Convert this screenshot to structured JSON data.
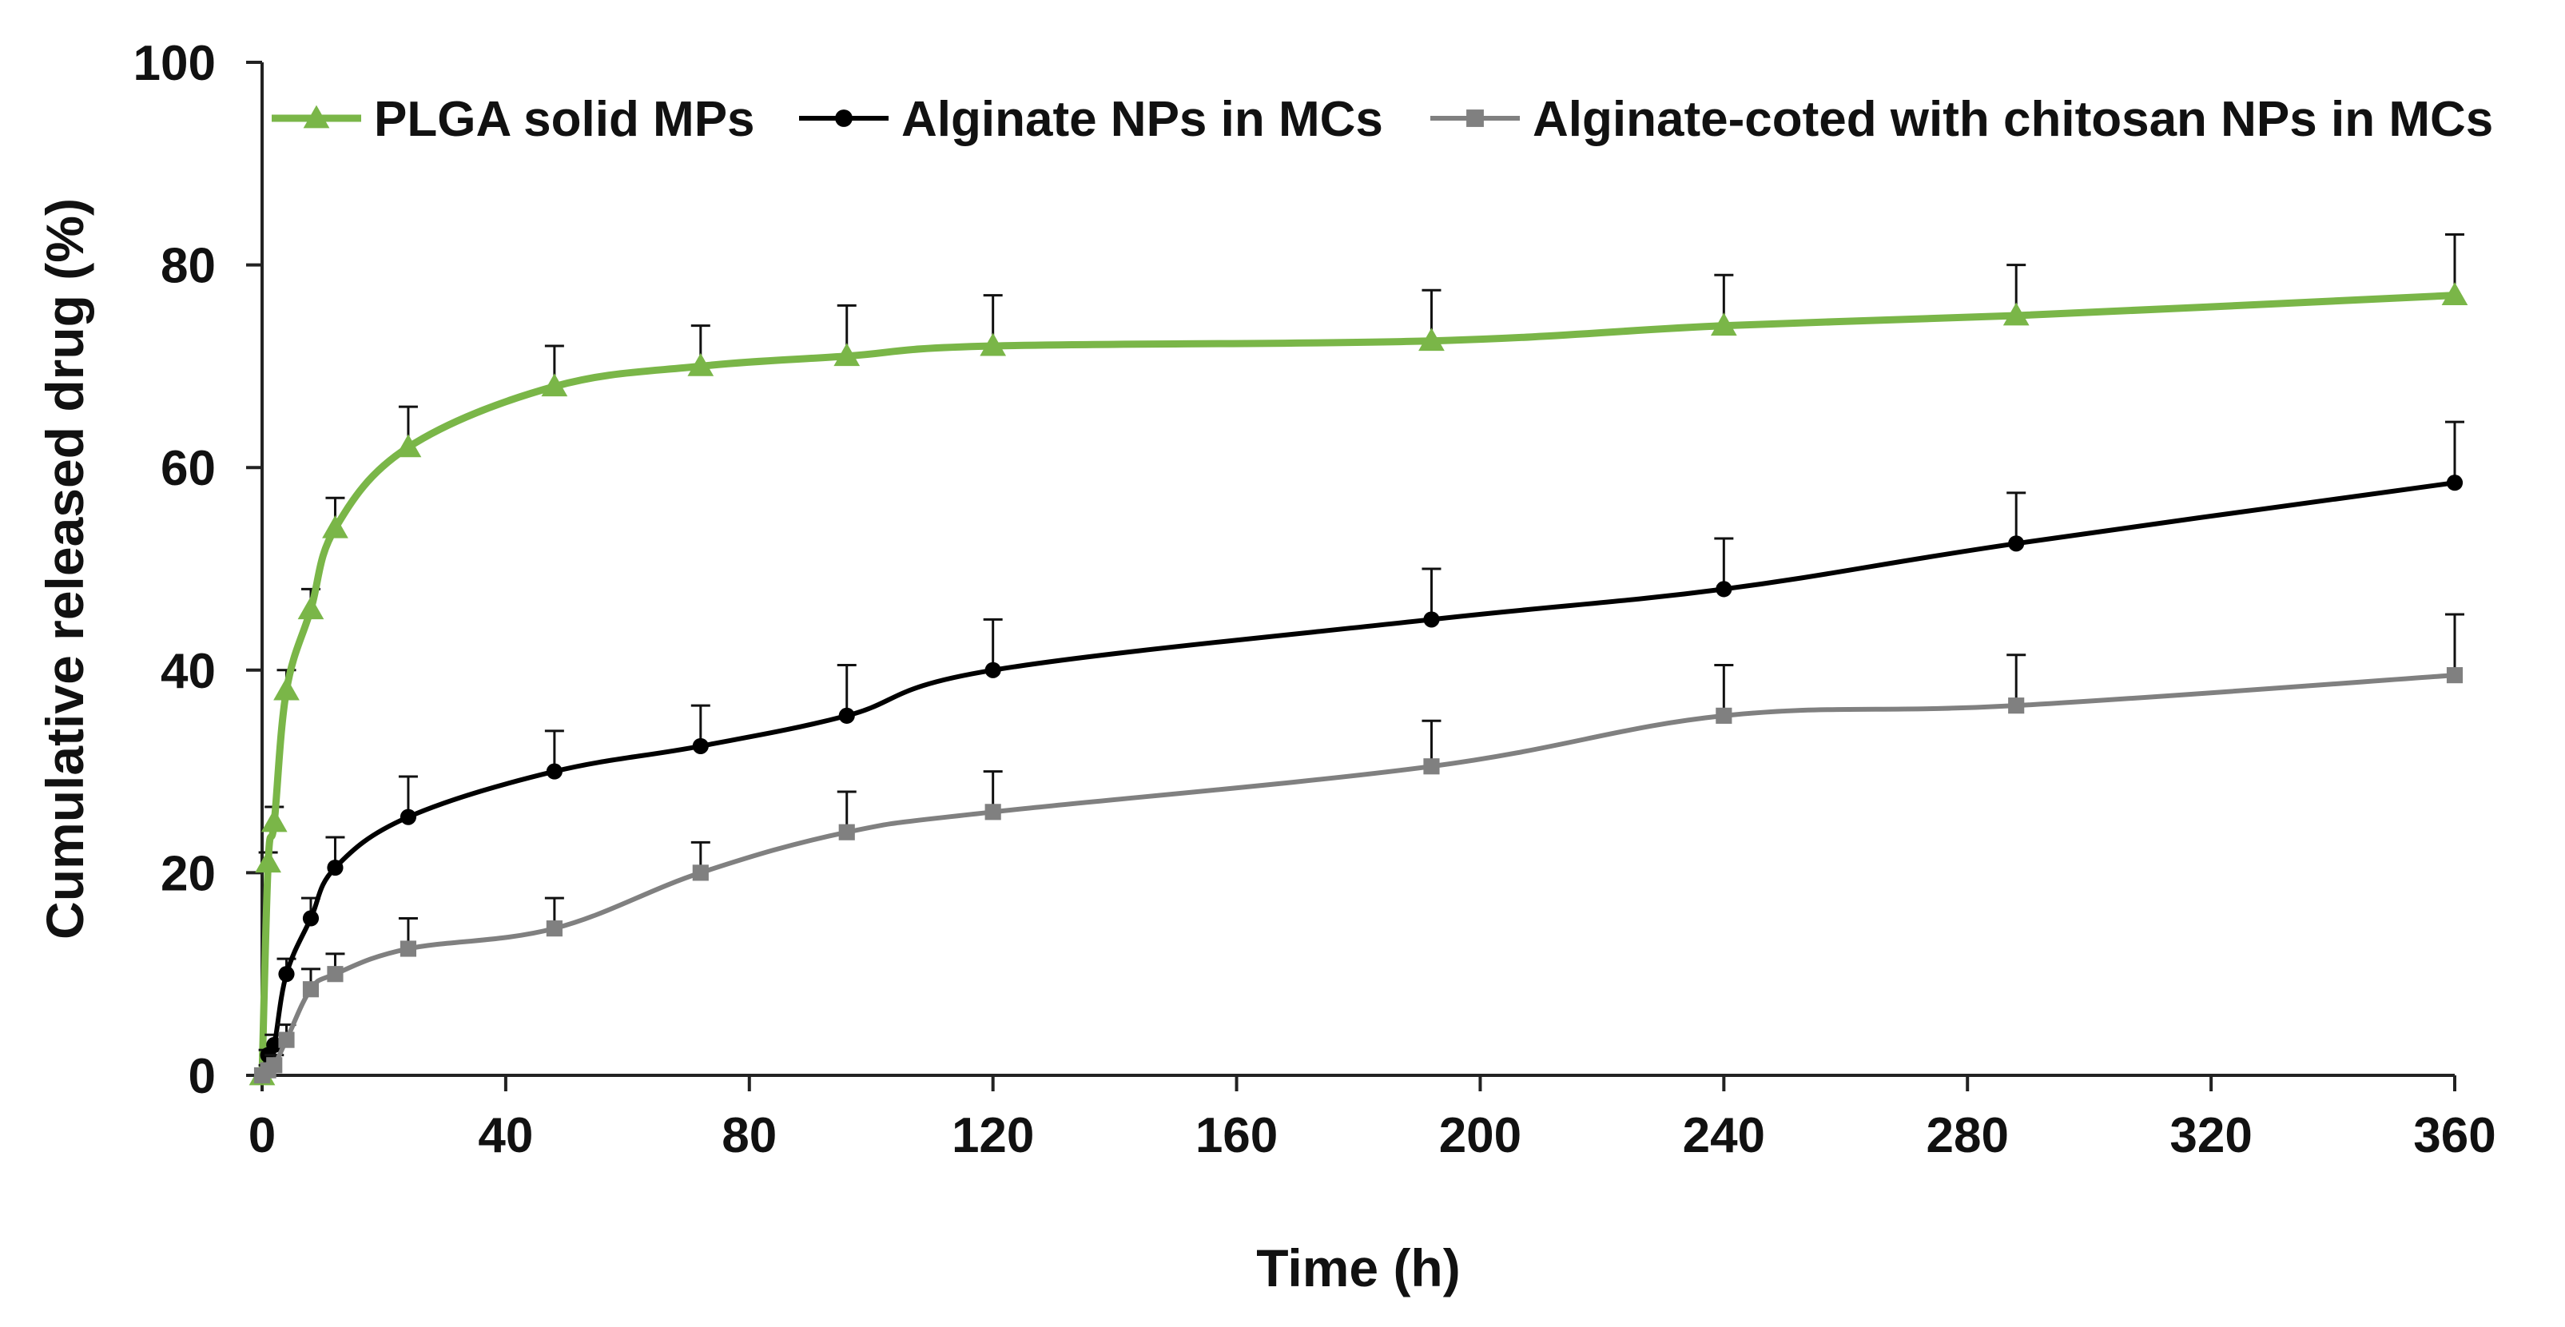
{
  "chart_data": {
    "type": "line",
    "title": "",
    "xlabel": "Time (h)",
    "ylabel": "Cumulative released drug (%)",
    "xlim": [
      0,
      360
    ],
    "ylim": [
      0,
      100
    ],
    "xticks": [
      "0",
      "40",
      "80",
      "120",
      "160",
      "200",
      "240",
      "280",
      "320",
      "360"
    ],
    "yticks": [
      "0",
      "20",
      "40",
      "60",
      "80",
      "100"
    ],
    "xtick_values": [
      0,
      40,
      80,
      120,
      160,
      200,
      240,
      280,
      320,
      360
    ],
    "ytick_values": [
      0,
      20,
      40,
      60,
      80,
      100
    ],
    "grid": false,
    "legend_position": "top",
    "series": [
      {
        "name": "PLGA solid MPs",
        "color": "#7ab648",
        "marker": "triangle",
        "x": [
          0,
          1,
          2,
          4,
          8,
          12,
          24,
          48,
          72,
          96,
          120,
          192,
          240,
          288,
          360
        ],
        "y": [
          0,
          21,
          25,
          38,
          46,
          54,
          62,
          68,
          70,
          71,
          72,
          72.5,
          74,
          75,
          77
        ],
        "error": [
          0,
          1,
          1.5,
          2,
          2,
          3,
          4,
          4,
          4,
          5,
          5,
          5,
          5,
          5,
          6
        ]
      },
      {
        "name": "Alginate NPs in MCs",
        "color": "#000000",
        "marker": "circle",
        "x": [
          0,
          1,
          2,
          4,
          8,
          12,
          24,
          48,
          72,
          96,
          120,
          192,
          240,
          288,
          360
        ],
        "y": [
          0,
          2,
          3,
          10,
          15.5,
          20.5,
          25.5,
          30,
          32.5,
          35.5,
          40,
          45,
          48,
          52.5,
          58.5
        ],
        "error": [
          0,
          0.5,
          1,
          1.5,
          2,
          3,
          4,
          4,
          4,
          5,
          5,
          5,
          5,
          5,
          6
        ]
      },
      {
        "name": "Alginate-coted with chitosan NPs in MCs",
        "color": "#808080",
        "marker": "square",
        "x": [
          0,
          1,
          2,
          4,
          8,
          12,
          24,
          48,
          72,
          96,
          120,
          192,
          240,
          288,
          360
        ],
        "y": [
          0,
          0.5,
          1,
          3.5,
          8.5,
          10,
          12.5,
          14.5,
          20,
          24,
          26,
          30.5,
          35.5,
          36.5,
          39.5
        ],
        "error": [
          0,
          0.5,
          1,
          1.5,
          2,
          2,
          3,
          3,
          3,
          4,
          4,
          4.5,
          5,
          5,
          6
        ]
      }
    ]
  }
}
